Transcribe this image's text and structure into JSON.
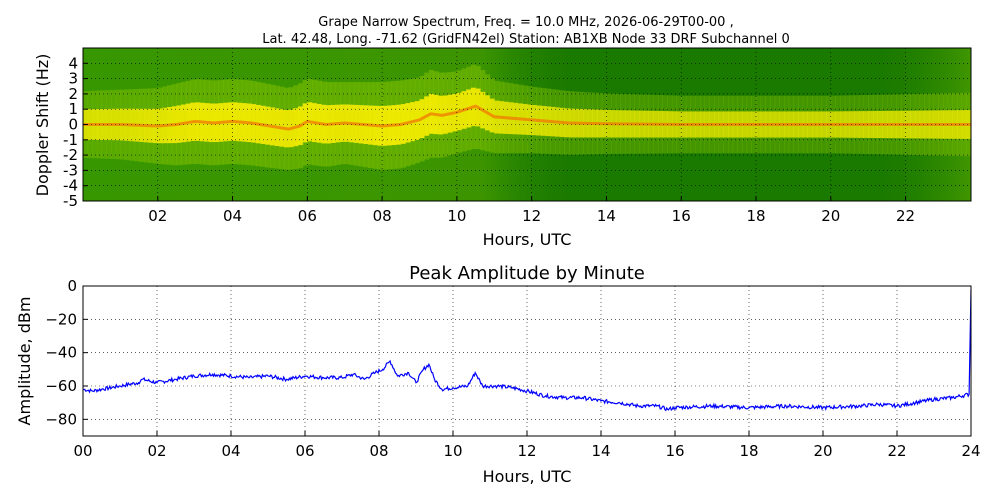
{
  "figure": {
    "title_line1": "Grape Narrow Spectrum, Freq. = 10.0 MHz, 2026-06-29T00-00 ,",
    "title_line2": "Lat.  42.48, Long. -71.62 (GridFN42el) Station: AB1XB Node 33 DRF Subchannel 0"
  },
  "chart_data": [
    {
      "type": "heatmap",
      "xlabel": "Hours, UTC",
      "ylabel": "Doppler Shift (Hz)",
      "xlim": [
        0,
        23.75
      ],
      "ylim": [
        -5,
        5
      ],
      "x_ticks": [
        {
          "value": 2,
          "label": "02"
        },
        {
          "value": 4,
          "label": "04"
        },
        {
          "value": 6,
          "label": "06"
        },
        {
          "value": 8,
          "label": "08"
        },
        {
          "value": 10,
          "label": "10"
        },
        {
          "value": 12,
          "label": "12"
        },
        {
          "value": 14,
          "label": "14"
        },
        {
          "value": 16,
          "label": "16"
        },
        {
          "value": 18,
          "label": "18"
        },
        {
          "value": 20,
          "label": "20"
        },
        {
          "value": 22,
          "label": "22"
        }
      ],
      "y_ticks": [
        {
          "value": 4,
          "label": "4"
        },
        {
          "value": 3,
          "label": "3"
        },
        {
          "value": 2,
          "label": "2"
        },
        {
          "value": 1,
          "label": "1"
        },
        {
          "value": 0,
          "label": "0"
        },
        {
          "value": -1,
          "label": "-1"
        },
        {
          "value": -2,
          "label": "-2"
        },
        {
          "value": -3,
          "label": "-3"
        },
        {
          "value": -4,
          "label": "-4"
        },
        {
          "value": -5,
          "label": "-5"
        }
      ],
      "grid": true,
      "colors": {
        "background": "#1a7a00",
        "mid": "#7fbf00",
        "high": "#f0ea00",
        "peak": "#f07800"
      },
      "carrier_trace": {
        "hours": [
          0,
          1,
          2,
          2.5,
          3,
          3.5,
          4,
          4.5,
          5,
          5.5,
          5.8,
          6,
          6.5,
          7,
          7.5,
          8,
          8.5,
          9,
          9.3,
          9.6,
          10,
          10.5,
          11,
          12,
          13,
          14,
          16,
          18,
          20,
          22,
          23.75
        ],
        "doppler_hz": [
          0,
          0,
          -0.1,
          0,
          0.2,
          0.1,
          0.2,
          0.1,
          -0.1,
          -0.3,
          -0.1,
          0.2,
          0,
          0.1,
          0,
          -0.1,
          0,
          0.3,
          0.7,
          0.6,
          0.8,
          1.2,
          0.5,
          0.3,
          0.1,
          0.05,
          0,
          0,
          0,
          0,
          0
        ],
        "intensity": [
          0.6,
          0.65,
          0.75,
          0.85,
          0.9,
          0.9,
          0.9,
          0.9,
          0.88,
          0.85,
          0.9,
          0.92,
          0.9,
          0.85,
          0.9,
          0.95,
          0.95,
          0.9,
          0.95,
          0.9,
          0.85,
          0.9,
          0.7,
          0.6,
          0.55,
          0.5,
          0.45,
          0.45,
          0.45,
          0.5,
          0.55
        ]
      }
    },
    {
      "type": "line",
      "title": "Peak Amplitude by Minute",
      "xlabel": "Hours, UTC",
      "ylabel": "Amplitude, dBm",
      "xlim": [
        0,
        24
      ],
      "ylim": [
        -90,
        0
      ],
      "x_ticks": [
        {
          "value": 0,
          "label": "00"
        },
        {
          "value": 2,
          "label": "02"
        },
        {
          "value": 4,
          "label": "04"
        },
        {
          "value": 6,
          "label": "06"
        },
        {
          "value": 8,
          "label": "08"
        },
        {
          "value": 10,
          "label": "10"
        },
        {
          "value": 12,
          "label": "12"
        },
        {
          "value": 14,
          "label": "14"
        },
        {
          "value": 16,
          "label": "16"
        },
        {
          "value": 18,
          "label": "18"
        },
        {
          "value": 20,
          "label": "20"
        },
        {
          "value": 22,
          "label": "22"
        },
        {
          "value": 24,
          "label": "24"
        }
      ],
      "y_ticks": [
        {
          "value": 0,
          "label": "0"
        },
        {
          "value": -20,
          "label": "−20"
        },
        {
          "value": -40,
          "label": "−40"
        },
        {
          "value": -60,
          "label": "−60"
        },
        {
          "value": -80,
          "label": "−80"
        }
      ],
      "grid": true,
      "series": [
        {
          "color": "#0000ff",
          "x": [
            0,
            0.25,
            0.5,
            1.0,
            1.5,
            1.6,
            2.0,
            2.5,
            3.0,
            3.5,
            4.0,
            4.5,
            5.0,
            5.5,
            6.0,
            6.5,
            7.0,
            7.3,
            7.6,
            7.9,
            8.1,
            8.3,
            8.5,
            8.8,
            9.0,
            9.2,
            9.35,
            9.5,
            9.7,
            10.0,
            10.4,
            10.6,
            10.8,
            11.2,
            11.6,
            12.0,
            12.5,
            13.0,
            13.5,
            14.0,
            14.5,
            15.0,
            15.5,
            15.8,
            16.0,
            17.0,
            18.0,
            19.0,
            20.0,
            21.0,
            21.5,
            22.0,
            22.5,
            23.0,
            23.5,
            23.95,
            24.0
          ],
          "y": [
            -62,
            -63,
            -62,
            -60,
            -58,
            -56,
            -58,
            -56,
            -54,
            -53,
            -54,
            -55,
            -54,
            -56,
            -54,
            -55,
            -55,
            -53,
            -56,
            -52,
            -50,
            -45,
            -54,
            -52,
            -58,
            -50,
            -47,
            -56,
            -62,
            -61,
            -60,
            -52,
            -60,
            -60,
            -61,
            -63,
            -66,
            -67,
            -67,
            -69,
            -70,
            -72,
            -72,
            -74,
            -73,
            -72,
            -73,
            -72,
            -73,
            -72,
            -71,
            -72,
            -70,
            -68,
            -67,
            -65,
            -2
          ]
        }
      ]
    }
  ]
}
